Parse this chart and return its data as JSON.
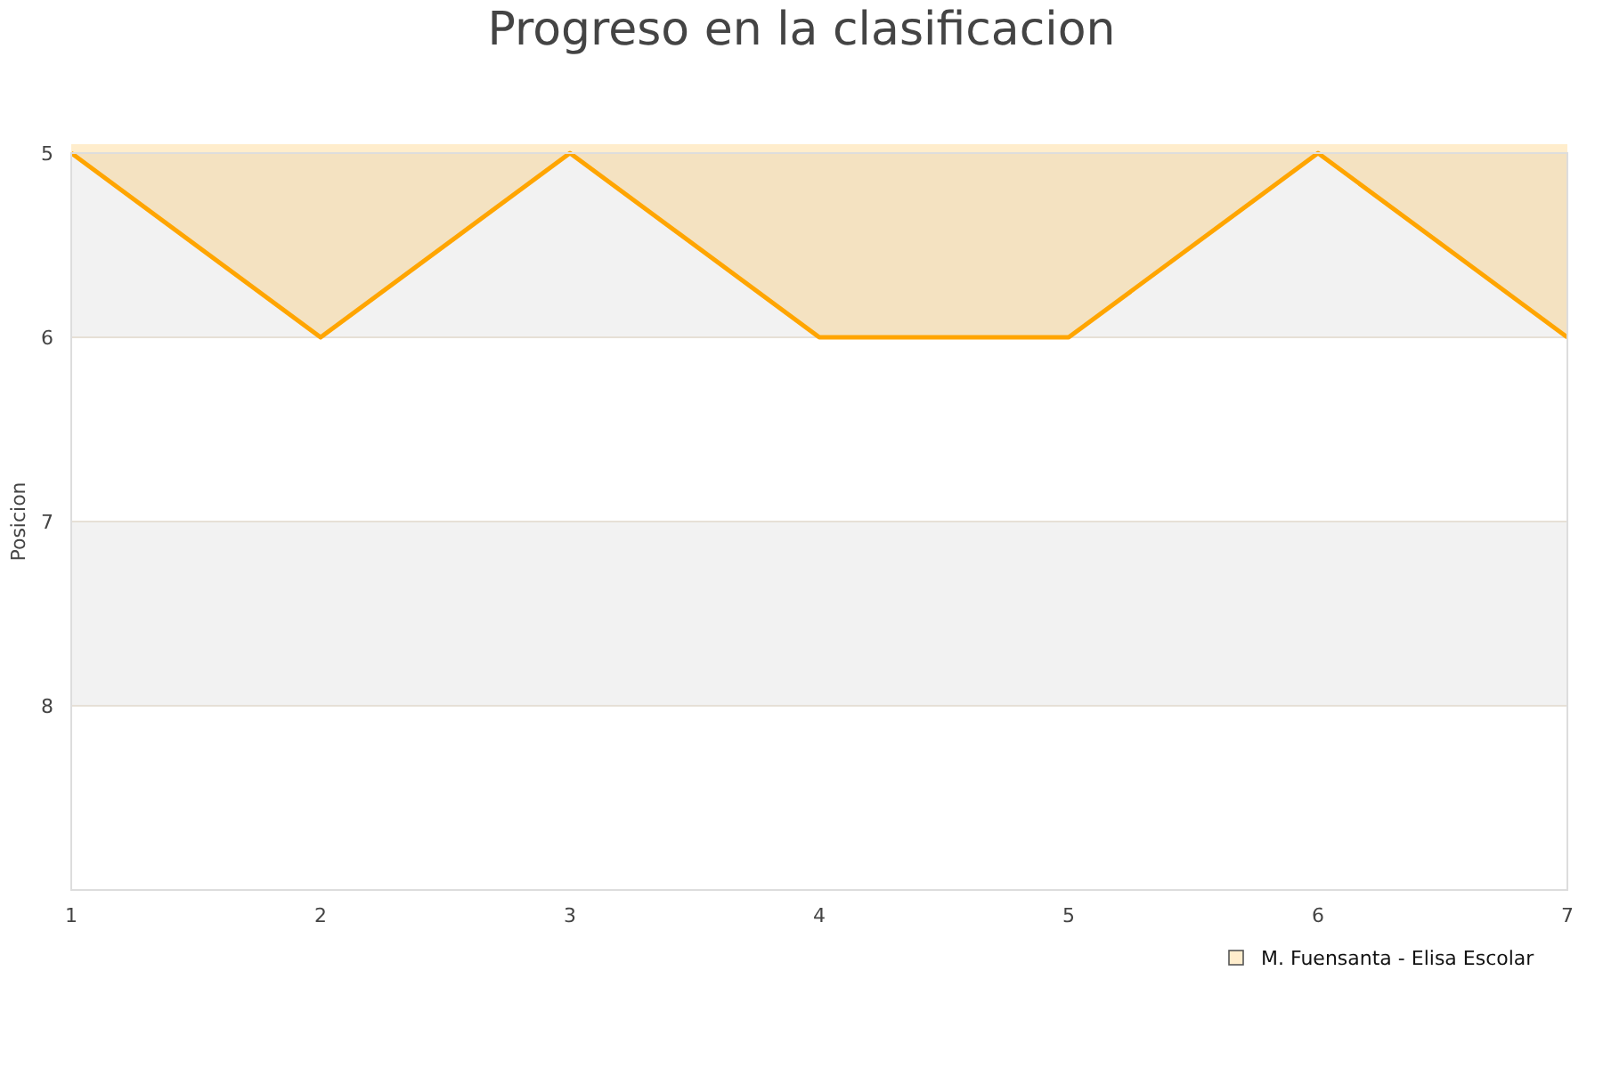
{
  "chart_data": {
    "type": "area",
    "title": "Progreso en la clasificacion",
    "ylabel": "Posicion",
    "x": [
      1,
      2,
      3,
      4,
      5,
      6,
      7
    ],
    "xlim": [
      1,
      7
    ],
    "xticks": [
      1,
      2,
      3,
      4,
      5,
      6,
      7
    ],
    "ylim": [
      9,
      5
    ],
    "yticks": [
      5,
      6,
      7,
      8
    ],
    "series": [
      {
        "name": "M. Fuensanta - Elisa Escolar",
        "color": "#ffa500",
        "values": [
          5,
          6,
          5,
          6,
          6,
          5,
          6
        ]
      }
    ],
    "bands": [
      {
        "axis": "y",
        "from": 5,
        "to": 6,
        "color": "#f2f2f2"
      },
      {
        "axis": "y",
        "from": 7,
        "to": 8,
        "color": "#f2f2f2"
      }
    ],
    "grid": "y",
    "legend": "bottom right",
    "marker": "none"
  }
}
